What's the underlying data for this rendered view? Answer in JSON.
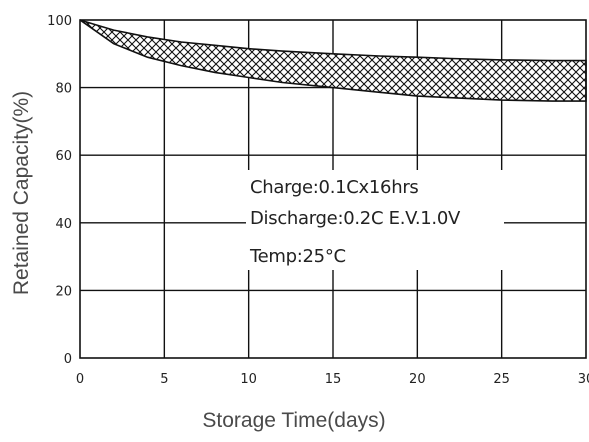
{
  "chart_data": {
    "type": "area",
    "title": "",
    "xlabel": "Storage Time(days)",
    "ylabel": "Retained Capacity(%)",
    "xlim": [
      0,
      30
    ],
    "ylim": [
      0,
      100
    ],
    "x_ticks": [
      0,
      5,
      10,
      15,
      20,
      25,
      30
    ],
    "y_ticks": [
      0,
      20,
      40,
      60,
      80,
      100
    ],
    "grid": true,
    "legend": "none",
    "series": [
      {
        "role": "upper bound",
        "x": [
          0,
          1,
          2,
          4,
          6,
          8,
          10,
          12,
          15,
          18,
          20,
          22,
          25,
          28,
          30
        ],
        "y": [
          100,
          98.5,
          97,
          95,
          93.5,
          92.5,
          91.5,
          90.8,
          90,
          89.3,
          89,
          88.6,
          88.2,
          88,
          88
        ]
      },
      {
        "role": "lower bound",
        "x": [
          0,
          1,
          2,
          4,
          6,
          8,
          10,
          12,
          15,
          18,
          20,
          22,
          25,
          28,
          30
        ],
        "y": [
          100,
          96.5,
          93,
          89,
          86.5,
          84.5,
          83,
          81.5,
          80,
          78.5,
          77.5,
          77,
          76.3,
          76,
          76
        ]
      }
    ],
    "annotations": [
      "Charge:0.1Cx16hrs",
      "Discharge:0.2C E.V.1.0V",
      "Temp:25°C"
    ],
    "colors": {
      "line": "#111111",
      "hatch": "#111111",
      "background": "#ffffff"
    }
  }
}
